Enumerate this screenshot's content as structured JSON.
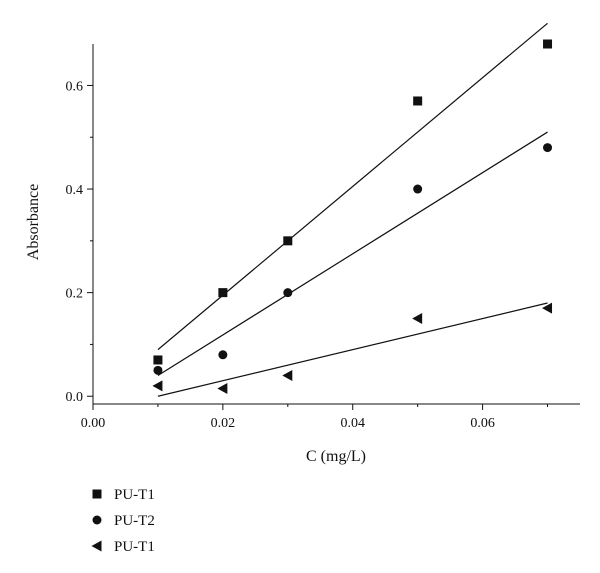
{
  "chart_data": {
    "type": "scatter",
    "title": "",
    "xlabel": "C (mg/L)",
    "ylabel": "Absorbance",
    "xlim": [
      0.0,
      0.075
    ],
    "ylim": [
      -0.015,
      0.68
    ],
    "x_ticks": [
      0.0,
      0.02,
      0.04,
      0.06
    ],
    "x_tick_labels": [
      "0.00",
      "0.02",
      "0.04",
      "0.06"
    ],
    "y_ticks": [
      0.0,
      0.2,
      0.4,
      0.6
    ],
    "y_tick_labels": [
      "0.0",
      "0.2",
      "0.4",
      "0.6"
    ],
    "grid": false,
    "legend_placement": "bottom-left",
    "series": [
      {
        "name": "PU-T1",
        "marker": "square",
        "x": [
          0.01,
          0.02,
          0.03,
          0.05,
          0.07
        ],
        "y": [
          0.07,
          0.2,
          0.3,
          0.57,
          0.68
        ],
        "fit_line": {
          "x": [
            0.01,
            0.07
          ],
          "y": [
            0.09,
            0.72
          ]
        }
      },
      {
        "name": "PU-T2",
        "marker": "circle",
        "x": [
          0.01,
          0.02,
          0.03,
          0.05,
          0.07
        ],
        "y": [
          0.05,
          0.08,
          0.2,
          0.4,
          0.48
        ],
        "fit_line": {
          "x": [
            0.01,
            0.07
          ],
          "y": [
            0.04,
            0.51
          ]
        }
      },
      {
        "name": "PU-T1",
        "marker": "triangle-left",
        "x": [
          0.01,
          0.02,
          0.03,
          0.05,
          0.07
        ],
        "y": [
          0.02,
          0.015,
          0.04,
          0.15,
          0.17
        ],
        "fit_line": {
          "x": [
            0.01,
            0.07
          ],
          "y": [
            0.0,
            0.18
          ]
        }
      }
    ]
  }
}
